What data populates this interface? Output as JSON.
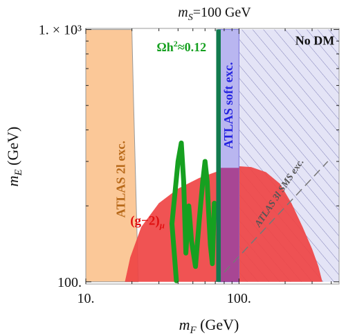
{
  "chart_data": {
    "type": "area",
    "title": {
      "prefix": "m",
      "sub": "S",
      "suffix": "=100 GeV"
    },
    "xlabel": {
      "sym": "m",
      "sub": "F",
      "unit": " (GeV)"
    },
    "ylabel": {
      "sym": "m",
      "sub": "E",
      "unit": " (GeV)"
    },
    "xscale": "log",
    "yscale": "log",
    "xlim": [
      10,
      450
    ],
    "ylim": [
      98,
      1010
    ],
    "x_ticks": [
      {
        "v": 10,
        "label": "10."
      },
      {
        "v": 100,
        "label": "100."
      }
    ],
    "y_ticks": [
      {
        "v": 100,
        "label": "100."
      },
      {
        "v": 1000,
        "label": "1. × 10³"
      }
    ],
    "grid": false,
    "colors": {
      "atlas2l": "#fbc898",
      "g2": "#ef4444",
      "relic": "#16a020",
      "relic_band": "#127a4e",
      "atlas_soft": "#b9b6f0",
      "no_dm": "#e4e4f6",
      "sms": "#777777",
      "overlap": "#a63a8a"
    },
    "annotations": {
      "atlas2l": "ATLAS 2l exc.",
      "g2": "(g−2)",
      "g2_sub": "μ",
      "relic": "Ωh",
      "relic_sup": "2",
      "relic_tail": "≈0.12",
      "atlas_soft": "ATLAS soft exc.",
      "no_dm": "No DM",
      "sms": "ATLAS 3l SMS exc."
    },
    "regions": {
      "atlas2l": [
        [
          10,
          1000
        ],
        [
          20,
          1000
        ],
        [
          20.5,
          520
        ],
        [
          22,
          100
        ],
        [
          10,
          100
        ]
      ],
      "g2_boundary": [
        [
          18,
          100
        ],
        [
          19.5,
          125
        ],
        [
          23,
          165
        ],
        [
          30,
          205
        ],
        [
          40,
          234
        ],
        [
          55,
          258
        ],
        [
          70,
          272
        ],
        [
          85,
          282
        ],
        [
          100,
          287
        ],
        [
          120,
          285
        ],
        [
          150,
          272
        ],
        [
          185,
          245
        ],
        [
          220,
          205
        ],
        [
          260,
          165
        ],
        [
          300,
          135
        ],
        [
          330,
          115
        ],
        [
          350,
          100
        ]
      ],
      "relic_curve": [
        [
          39,
          101
        ],
        [
          36.5,
          170
        ],
        [
          40,
          300
        ],
        [
          42,
          355
        ],
        [
          43.5,
          250
        ],
        [
          45,
          130
        ],
        [
          47,
          200
        ],
        [
          49,
          145
        ],
        [
          52,
          115
        ],
        [
          55,
          175
        ],
        [
          58,
          250
        ],
        [
          60,
          300
        ],
        [
          62,
          250
        ],
        [
          63,
          200
        ],
        [
          65,
          140
        ],
        [
          67,
          118
        ],
        [
          69,
          205
        ]
      ],
      "relic_band_x": [
        71,
        76
      ],
      "relic_band_y": [
        100,
        1000
      ],
      "atlas_soft_x": [
        73,
        100
      ],
      "atlas_soft_y": [
        100,
        1000
      ],
      "no_dm_x": [
        100,
        450
      ],
      "no_dm_y": [
        100,
        1000
      ],
      "sms_line": [
        [
          70,
          100
        ],
        [
          380,
          300
        ]
      ],
      "overlap_x": [
        76,
        100
      ]
    }
  }
}
